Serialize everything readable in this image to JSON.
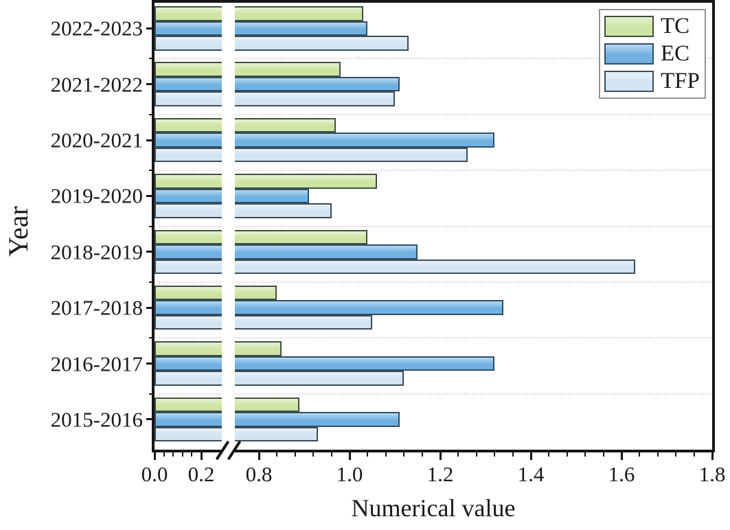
{
  "chart_data": {
    "type": "bar",
    "orientation": "horizontal",
    "title": "",
    "xlabel": "Numerical value",
    "ylabel": "Year",
    "categories": [
      "2022-2023",
      "2021-2022",
      "2020-2021",
      "2019-2020",
      "2018-2019",
      "2017-2018",
      "2016-2017",
      "2015-2016"
    ],
    "series": [
      {
        "name": "TC",
        "color": "#cde4a4",
        "border_color": "#3f4f41",
        "values": [
          1.03,
          0.98,
          0.97,
          1.06,
          1.04,
          0.84,
          0.85,
          0.89
        ]
      },
      {
        "name": "EC",
        "color": "#70b1e2",
        "border_color": "#2e4e63",
        "values": [
          1.04,
          1.11,
          1.32,
          0.91,
          1.15,
          1.34,
          1.32,
          1.11
        ]
      },
      {
        "name": "TFP",
        "color": "#d2e3f2",
        "border_color": "#3c4c57",
        "values": [
          1.13,
          1.1,
          1.26,
          0.96,
          1.63,
          1.05,
          1.12,
          0.93
        ]
      }
    ],
    "x_axis": {
      "tick_values": [
        0.0,
        0.2,
        0.8,
        1.0,
        1.2,
        1.4,
        1.6,
        1.8
      ],
      "tick_labels": [
        "0.0",
        "0.2",
        "0.8",
        "1.0",
        "1.2",
        "1.4",
        "1.6",
        "1.8"
      ],
      "range": [
        0.0,
        1.8
      ],
      "axis_break": {
        "from": 0.2,
        "to": 0.8
      },
      "minor_ticks_per_interval": 4
    },
    "legend": {
      "position": "top-right",
      "entries": [
        "TC",
        "EC",
        "TFP"
      ]
    },
    "grid": {
      "horizontal_group_separators": true,
      "style": "dotted"
    },
    "colors": {
      "frame": "#161616",
      "gridline": "#e3d5d5",
      "text": "#1a1a1a",
      "legend_border": "#8e9494",
      "background": "#ffffff"
    }
  }
}
